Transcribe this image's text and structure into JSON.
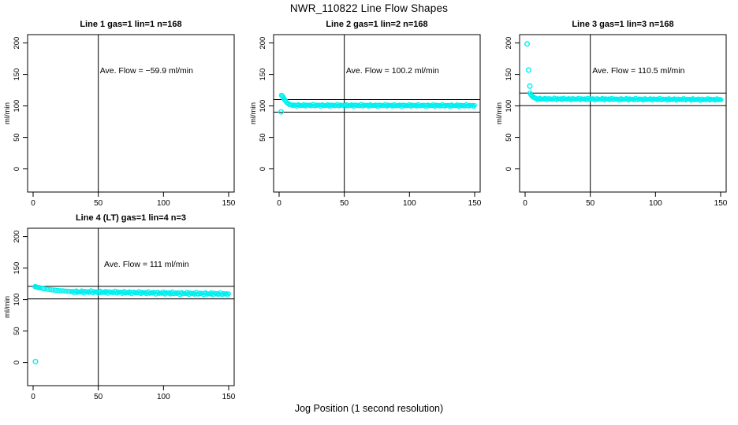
{
  "figure": {
    "title": "NWR_110822  Line Flow Shapes",
    "xlabel": "Jog Position (1 second resolution)",
    "background": "#ffffff",
    "marker_color": "#00f0f0",
    "line_color": "#000000"
  },
  "chart_data": {
    "type": "scatter",
    "layout": {
      "rows": 2,
      "cols": 3,
      "x_range": [
        -4,
        154
      ],
      "y_range": [
        -37,
        213
      ],
      "x_ticks": [
        0,
        50,
        100,
        150
      ],
      "y_ticks": [
        0,
        50,
        100,
        150,
        200
      ],
      "grid": false,
      "legend": "none",
      "marker": "open-circle"
    },
    "panels": [
      {
        "id": "line-1",
        "title": "Line 1 gas=1 lin=1 n=168",
        "row": 0,
        "col": 0,
        "ylabel": "ml/min",
        "ave_flow": -59.9,
        "annotation": "Ave. Flow =  −59.9  ml/min",
        "annotation_at": {
          "x": 87,
          "y": 152
        },
        "vline_x": 50,
        "ref_lines": [],
        "head_points": [],
        "steady": null,
        "outliers": []
      },
      {
        "id": "line-2",
        "title": "Line 2 gas=1 lin=2 n=168",
        "row": 0,
        "col": 1,
        "ylabel": "ml/min",
        "ave_flow": 100.2,
        "annotation": "Ave. Flow =  100.2  ml/min",
        "annotation_at": {
          "x": 87,
          "y": 152
        },
        "vline_x": 50,
        "ref_lines": [
          110.2,
          90.2
        ],
        "head_points": [
          [
            1.8,
            117
          ],
          [
            2.4,
            115.8
          ],
          [
            3,
            114
          ],
          [
            3.6,
            112
          ],
          [
            4.3,
            109.8
          ],
          [
            5,
            107.8
          ],
          [
            6,
            105.3
          ],
          [
            7,
            103.6
          ],
          [
            8,
            102.4
          ],
          [
            9,
            101.7
          ],
          [
            10,
            101.2
          ]
        ],
        "steady": {
          "x_from": 10.8,
          "x_to": 150.5,
          "mean": 101.0,
          "mean_end": 100.6,
          "amplitude": 1.8
        },
        "outliers": [
          [
            1.5,
            90.5
          ]
        ]
      },
      {
        "id": "line-3",
        "title": "Line 3 gas=1 lin=3 n=168",
        "row": 0,
        "col": 2,
        "ylabel": "ml/min",
        "ave_flow": 110.5,
        "annotation": "Ave. Flow =  110.5  ml/min",
        "annotation_at": {
          "x": 87,
          "y": 152
        },
        "vline_x": 50,
        "ref_lines": [
          120.5,
          100.5
        ],
        "head_points": [
          [
            3.8,
            120.5
          ],
          [
            4.4,
            118
          ],
          [
            5.1,
            116.2
          ],
          [
            6,
            114.4
          ],
          [
            7,
            113.2
          ],
          [
            8,
            112.3
          ]
        ],
        "steady": {
          "x_from": 8.8,
          "x_to": 150.5,
          "mean": 111.2,
          "mean_end": 110.2,
          "amplitude": 1.8
        },
        "outliers": [
          [
            1.5,
            198.5
          ],
          [
            2.6,
            157
          ],
          [
            3.6,
            131.5
          ]
        ]
      },
      {
        "id": "line-4",
        "title": "Line 4 (LT) gas=1 lin=4 n=3",
        "row": 1,
        "col": 0,
        "ylabel": "ml/min",
        "ave_flow": 111,
        "annotation": "Ave. Flow =  111  ml/min",
        "annotation_at": {
          "x": 87,
          "y": 152
        },
        "vline_x": 50,
        "ref_lines": [
          121,
          101
        ],
        "head_points": [
          [
            1.5,
            120.5
          ],
          [
            2.2,
            120
          ],
          [
            3,
            119.6
          ],
          [
            4,
            119.1
          ],
          [
            5,
            118.7
          ],
          [
            6.2,
            118.2
          ],
          [
            7.5,
            117.7
          ],
          [
            9,
            117.1
          ],
          [
            11,
            116.4
          ],
          [
            13,
            115.8
          ],
          [
            15,
            115.3
          ],
          [
            17,
            114.8
          ],
          [
            19,
            114.4
          ],
          [
            21,
            114.0
          ],
          [
            23,
            113.7
          ],
          [
            25,
            113.4
          ],
          [
            27,
            113.1
          ],
          [
            29,
            112.8
          ]
        ],
        "steady": {
          "x_from": 30,
          "x_to": 150.5,
          "mean": 112.5,
          "mean_end": 108.8,
          "amplitude": 2.3
        },
        "outliers": [
          [
            1.8,
            1.5
          ]
        ]
      }
    ]
  }
}
